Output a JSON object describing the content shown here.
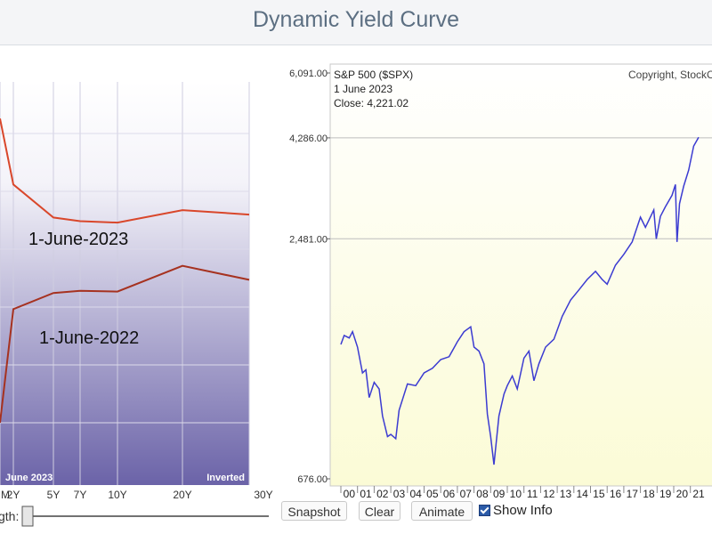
{
  "page": {
    "title": "Dynamic Yield Curve"
  },
  "controls": {
    "strength_label": "gth:",
    "snapshot": "Snapshot",
    "clear": "Clear",
    "animate": "Animate",
    "show_info": "Show Info",
    "show_info_checked": true,
    "slider_value": 0
  },
  "chart_data": [
    {
      "type": "line",
      "x": [
        "M",
        "2Y",
        "5Y",
        "7Y",
        "10Y",
        "20Y",
        "30Y"
      ],
      "tick_labels": [
        "M",
        "2Y",
        "5Y",
        "7Y",
        "10Y",
        "20Y",
        "30Y"
      ],
      "series": [
        {
          "name": "1-June-2023",
          "color": "#d9472b",
          "values": [
            5.3,
            4.4,
            3.95,
            3.9,
            3.88,
            4.05,
            3.99
          ]
        },
        {
          "name": "1-June-2022",
          "color": "#a63220",
          "values": [
            1.15,
            2.7,
            2.92,
            2.95,
            2.94,
            3.29,
            3.1
          ]
        }
      ],
      "annotations": [
        "June 2023",
        "Inverted"
      ],
      "ylim": [
        0.3,
        5.8
      ],
      "grid": true,
      "colors": {
        "top": "#ffffff",
        "bottom": "#6b63a8"
      }
    },
    {
      "type": "line",
      "title": "S&P 500 ($SPX)",
      "copyright": "Copyright, StockC",
      "info_date": "1  June 2023",
      "info_close": "Close: 4,221.02",
      "y_tick_labels": [
        "6,091.00",
        "4,286.00",
        "2,481.00",
        "676.00"
      ],
      "x_tick_labels": [
        "00",
        "01",
        "02",
        "03",
        "04",
        "05",
        "06",
        "07",
        "08",
        "09",
        "10",
        "11",
        "12",
        "13",
        "14",
        "15",
        "16",
        "17",
        "18",
        "19",
        "20",
        "21"
      ],
      "y_scale": "log",
      "ylim": [
        676,
        6091
      ],
      "line_color": "#3b3bd1",
      "x": [
        2000.0,
        2000.2,
        2000.5,
        2000.7,
        2001.0,
        2001.3,
        2001.5,
        2001.7,
        2002.0,
        2002.3,
        2002.5,
        2002.8,
        2003.0,
        2003.3,
        2003.5,
        2004.0,
        2004.5,
        2005.0,
        2005.5,
        2006.0,
        2006.5,
        2007.0,
        2007.4,
        2007.8,
        2008.0,
        2008.3,
        2008.6,
        2008.8,
        2009.0,
        2009.2,
        2009.5,
        2009.8,
        2010.0,
        2010.3,
        2010.6,
        2011.0,
        2011.3,
        2011.6,
        2011.9,
        2012.3,
        2012.8,
        2013.3,
        2013.8,
        2014.3,
        2014.8,
        2015.3,
        2015.7,
        2016.0,
        2016.5,
        2017.0,
        2017.5,
        2018.0,
        2018.3,
        2018.8,
        2018.95,
        2019.2,
        2019.5,
        2019.9,
        2020.1,
        2020.2,
        2020.35,
        2020.6,
        2020.9,
        2021.2,
        2021.5
      ],
      "y": [
        1400,
        1470,
        1450,
        1500,
        1380,
        1200,
        1220,
        1050,
        1140,
        1100,
        950,
        850,
        860,
        840,
        980,
        1130,
        1120,
        1200,
        1230,
        1290,
        1310,
        1420,
        1500,
        1540,
        1380,
        1350,
        1260,
        960,
        850,
        730,
        950,
        1070,
        1120,
        1180,
        1100,
        1300,
        1350,
        1150,
        1260,
        1380,
        1440,
        1630,
        1780,
        1880,
        1990,
        2080,
        1990,
        1940,
        2150,
        2280,
        2440,
        2790,
        2640,
        2900,
        2480,
        2800,
        2950,
        3140,
        3330,
        2440,
        3000,
        3300,
        3600,
        4100,
        4300
      ]
    }
  ]
}
